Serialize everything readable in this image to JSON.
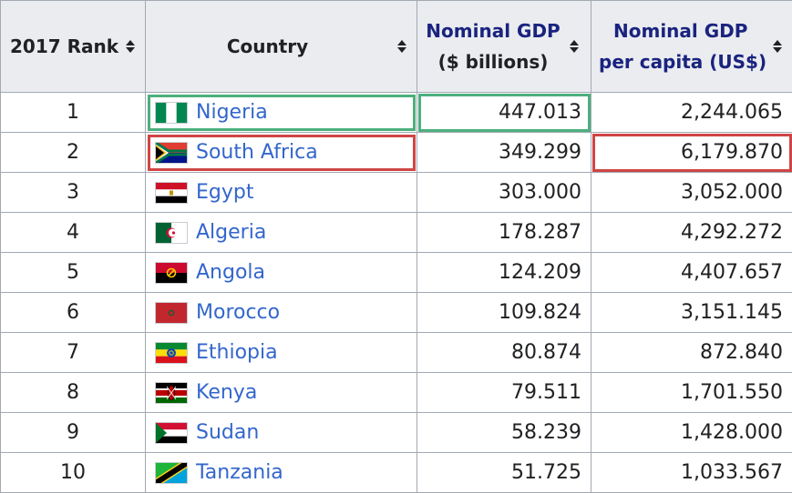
{
  "table": {
    "headers": {
      "rank": "2017 Rank",
      "country": "Country",
      "gdp_line1": "Nominal GDP",
      "gdp_line2": "($ billions)",
      "percap_line1": "Nominal GDP",
      "percap_line2": "per capita (US$)"
    },
    "rows": [
      {
        "rank": "1",
        "country": "Nigeria",
        "gdp": "447.013",
        "percap": "2,244.065",
        "flag": "nigeria-flag-icon"
      },
      {
        "rank": "2",
        "country": "South Africa",
        "gdp": "349.299",
        "percap": "6,179.870",
        "flag": "south-africa-flag-icon"
      },
      {
        "rank": "3",
        "country": "Egypt",
        "gdp": "303.000",
        "percap": "3,052.000",
        "flag": "egypt-flag-icon"
      },
      {
        "rank": "4",
        "country": "Algeria",
        "gdp": "178.287",
        "percap": "4,292.272",
        "flag": "algeria-flag-icon"
      },
      {
        "rank": "5",
        "country": "Angola",
        "gdp": "124.209",
        "percap": "4,407.657",
        "flag": "angola-flag-icon"
      },
      {
        "rank": "6",
        "country": "Morocco",
        "gdp": "109.824",
        "percap": "3,151.145",
        "flag": "morocco-flag-icon"
      },
      {
        "rank": "7",
        "country": "Ethiopia",
        "gdp": "80.874",
        "percap": "872.840",
        "flag": "ethiopia-flag-icon"
      },
      {
        "rank": "8",
        "country": "Kenya",
        "gdp": "79.511",
        "percap": "1,701.550",
        "flag": "kenya-flag-icon"
      },
      {
        "rank": "9",
        "country": "Sudan",
        "gdp": "58.239",
        "percap": "1,428.000",
        "flag": "sudan-flag-icon"
      },
      {
        "rank": "10",
        "country": "Tanzania",
        "gdp": "51.725",
        "percap": "1,033.567",
        "flag": "tanzania-flag-icon"
      }
    ]
  },
  "colors": {
    "link": "#3366cc",
    "header_link": "#1a237e",
    "highlight_green": "#4caf7d",
    "highlight_red": "#d04545",
    "header_bg": "#eaecf0",
    "border": "#a2a9b1"
  }
}
